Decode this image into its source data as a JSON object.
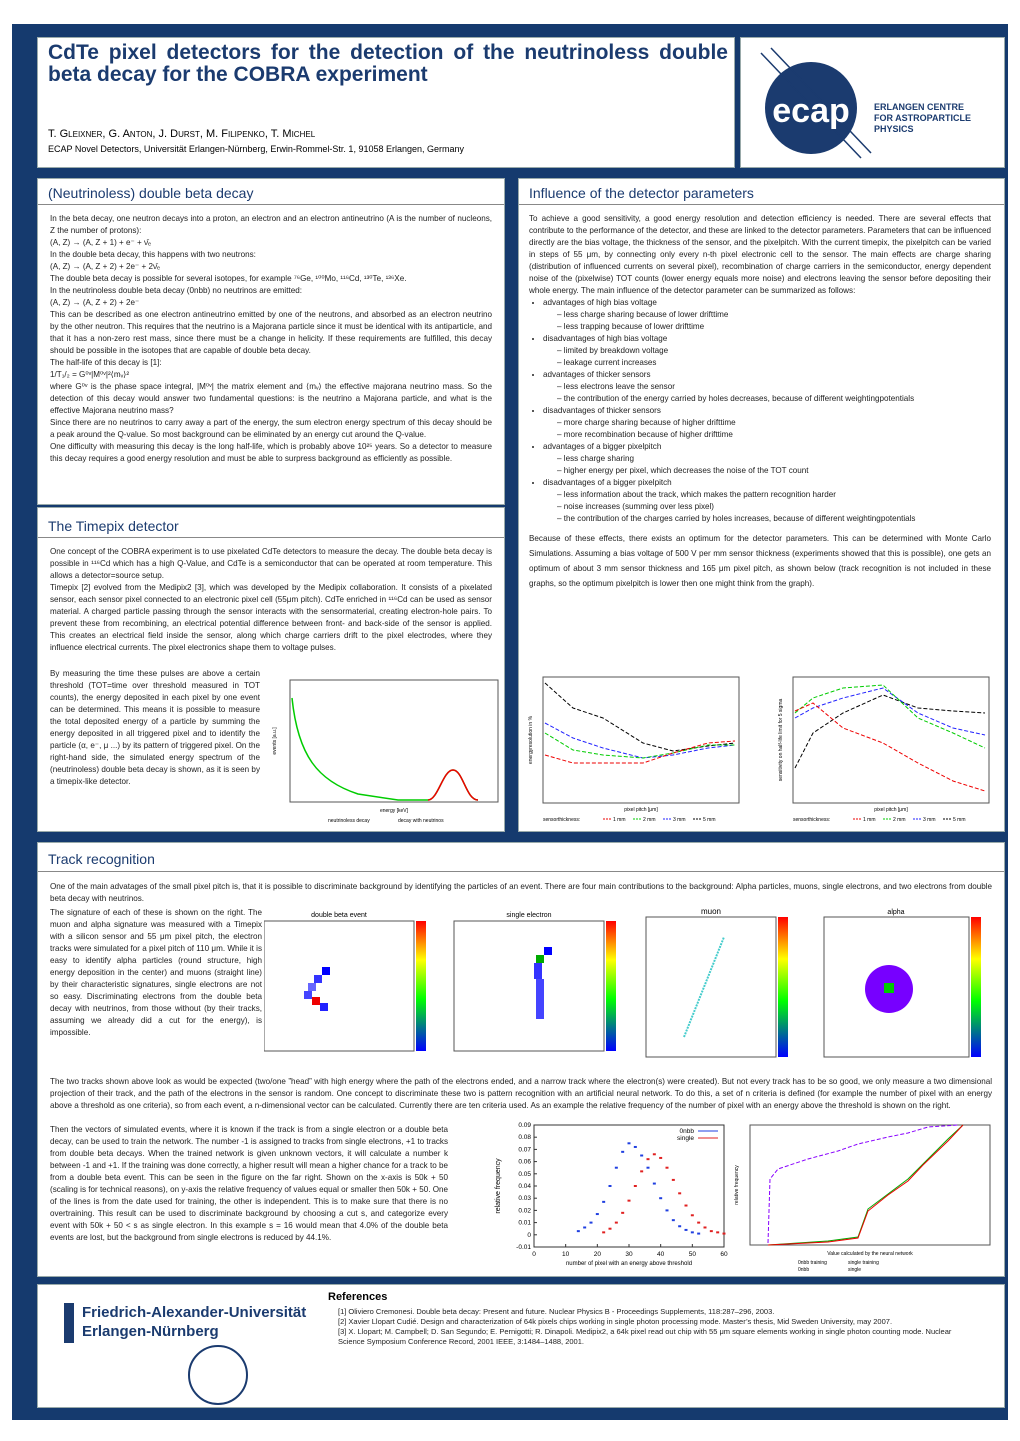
{
  "header": {
    "title": "CdTe pixel detectors for the detection of the neutrinoless double beta decay for the COBRA experiment",
    "authors": "T. Gleixner, G. Anton, J. Durst, M. Filipenko, T. Michel",
    "affiliation": "ECAP Novel Detectors, Universität Erlangen-Nürnberg, Erwin-Rommel-Str. 1, 91058 Erlangen, Germany"
  },
  "logo": {
    "mark": "ecap",
    "lines": [
      "ERLANGEN CENTRE",
      "FOR ASTROPARTICLE",
      "PHYSICS"
    ]
  },
  "double_beta": {
    "title": "(Neutrinoless) double beta decay",
    "paragraphs": [
      "In the beta decay, one neutron decays into a proton, an electron and an electron antineutrino (A is the number of nucleons, Z the number of protons):",
      "(A, Z) → (A, Z + 1) + e⁻ + ν̄ₑ",
      "In the double beta decay, this happens with two neutrons:",
      "(A, Z) → (A, Z + 2) + 2e⁻ + 2ν̄ₑ",
      "The double beta decay is possible for several isotopes, for example ⁷⁶Ge, ¹⁰⁰Mo, ¹¹⁶Cd, ¹³⁰Te, ¹³⁶Xe.",
      "In the neutrinoless double beta decay (0nbb) no neutrinos are emitted:",
      "(A, Z) → (A, Z + 2) + 2e⁻",
      "This can be described as one electron antineutrino emitted by one of the neutrons, and absorbed as an electron neutrino by the other neutron. This requires that the neutrino is a Majorana particle since it must be identical with its antiparticle, and that it has a non-zero rest mass, since there must be a change in helicity. If these requirements are fulfilled, this decay should be possible in the isotopes that are capable of double beta decay.",
      "The half-life of this decay is [1]:",
      "1/T₁/₂ = G⁰ᵛ|M⁰ᵛ|²⟨mᵥ⟩²",
      "where G⁰ᵛ is the phase space integral, |M⁰ᵛ| the matrix element and ⟨mᵥ⟩ the effective majorana neutrino mass. So the detection of this decay would answer two fundamental questions: is the neutrino a Majorana particle, and what is the effective Majorana neutrino mass?",
      "Since there are no neutrinos to carry away a part of the energy, the sum electron energy spectrum of this decay should be a peak around the Q-value. So most background can be eliminated by an energy cut around the Q-value.",
      "One difficulty with measuring this decay is the long half-life, which is probably above 10²⁵ years. So a detector to measure this decay requires a good energy resolution and must be able to surpress background as efficiently as possible."
    ]
  },
  "timepix": {
    "title": "The Timepix detector",
    "paragraphs": [
      "One concept of the COBRA experiment is to use pixelated CdTe detectors to measure the decay. The double beta decay is possible in ¹¹⁶Cd which has a high Q-Value, and CdTe is a semiconductor that can be operated at room temperature. This allows a detector=source setup.",
      "Timepix [2] evolved from the Medipix2 [3], which was developed by the Medipix collaboration. It consists of a pixelated sensor, each sensor pixel connected to an electronic pixel cell (55μm pitch). CdTe enriched in ¹¹⁶Cd can be used as sensor material. A charged particle passing through the sensor interacts with the sensormaterial, creating electron-hole pairs. To prevent these from recombining, an electrical potential difference between front- and back-side of the sensor is applied. This creates an electrical field inside the sensor, along which charge carriers drift to the pixel electrodes, where they influence electrical currents. The pixel electronics shape them to voltage pulses.",
      "By measuring the time these pulses are above a certain threshold (TOT=time over threshold measured in TOT counts), the energy deposited in each pixel by one event can be determined. This means it is possible to measure the total deposited energy of a particle by summing the energy deposited in all triggered pixel and to identify the particle (α, e⁻, μ ...) by its pattern of triggered pixel. On the right-hand side, the simulated energy spectrum of the (neutrinoless) double beta decay is shown, as it is seen by a timepix-like detector."
    ],
    "figure": {
      "x_label": "energy [keV]",
      "y_label": "events [a.u.]",
      "legend": [
        "neutrinoless decay",
        "decay with neutrinos"
      ]
    }
  },
  "parameters": {
    "title": "Influence of the detector parameters",
    "intro": "To achieve a good sensitivity, a good energy resolution and detection efficiency is needed. There are several effects that contribute to the performance of the detector, and these are linked to the detector parameters. Parameters that can be influenced directly are the bias voltage, the thickness of the sensor, and the pixelpitch. With the current timepix, the pixelpitch can be varied in steps of 55 μm, by connecting only every n-th pixel electronic cell to the sensor. The main effects are charge sharing (distribution of influenced currents on several pixel), recombination of charge carriers in the semiconductor, energy dependent noise of the (pixelwise) TOT counts (lower energy equals more noise) and electrons leaving the sensor before depositing their whole energy. The main influence of the detector parameter can be summarized as follows:",
    "bullets": [
      {
        "text": "advantages of high bias voltage",
        "subitems": [
          "less charge sharing because of lower drifttime",
          "less trapping because of lower drifttime"
        ]
      },
      {
        "text": "disadvantages of high bias voltage",
        "subitems": [
          "limited by breakdown voltage",
          "leakage current increases"
        ]
      },
      {
        "text": "advantages of thicker sensors",
        "subitems": [
          "less electrons leave the sensor",
          "the contribution of the energy carried by holes decreases, because of different weightingpotentials"
        ]
      },
      {
        "text": "disadvantages of thicker sensors",
        "subitems": [
          "more charge sharing because of higher drifttime",
          "more recombination because of higher drifttime"
        ]
      },
      {
        "text": "advantages of a bigger pixelpitch",
        "subitems": [
          "less charge sharing",
          "higher energy per pixel, which decreases the noise of the TOT count"
        ]
      },
      {
        "text": "disadvantages of a bigger pixelpitch",
        "subitems": [
          "less information about the track, which makes the pattern recognition harder",
          "noise increases (summing over less pixel)",
          "the contribution of the charges carried by holes increases, because of different weightingpotentials"
        ]
      }
    ],
    "closing": "Because of these effects, there exists an optimum for the detector parameters. This can be determined with Monte Carlo Simulations. Assuming a bias voltage of 500 V per mm sensor thickness (experiments showed that this is possible), one gets an optimum of about 3 mm sensor thickness and 165 μm pixel pitch, as shown below (track recognition is not included in these graphs, so the optimum pixelpitch is lower then one might think from the graph).",
    "figures": [
      {
        "x_label": "pixel pitch [μm]",
        "y_label": "energyresolution in %",
        "legend": [
          "sensorthickness:",
          "1 mm",
          "2 mm",
          "3 mm",
          "5 mm"
        ]
      },
      {
        "x_label": "pixel pitch [μm]",
        "y_label": "sensitivity on half-life limit for 5 sigma",
        "legend": [
          "sensorthickness:",
          "1 mm",
          "2 mm",
          "3 mm",
          "5 mm"
        ]
      }
    ]
  },
  "track": {
    "title": "Track recognition",
    "paragraphs": [
      "One of the main advatages of the small pixel pitch is, that it is possible to discriminate background by identifying the particles of an event. There are four main contributions to the background: Alpha particles, muons, single electrons, and two electrons from double beta decay with neutrinos.",
      "The signature of each of these is shown on the right. The muon and alpha signature was measured with a Timepix with a silicon sensor and 55 μm pixel pitch, the electron tracks were simulated for a pixel pitch of 110 μm. While it is easy to identify alpha particles (round structure, high energy deposition in the center) and muons (straight line) by their characteristic signatures, single electrons are not so easy. Discriminating electrons from the double beta decay with neutrinos, from those without (by their tracks, assuming we already did a cut for the energy), is impossible.",
      "The two tracks shown above look as would be expected (two/one ”head” with high energy where the path of the electrons ended, and a narrow track where the electron(s) were created). But not every track has to be so good, we only measure a two dimensional projection of their track, and the path of the electrons in the sensor is random. One concept to discriminate these two is pattern recognition with an artificial neural network. To do this, a set of n criteria is defined (for example the number of pixel with an energy above a threshold as one criteria), so from each event, a n-dimensional vector can be calculated. Currently there are ten criteria used. As an example the relative frequency of the number of pixel with an energy above the threshold is shown on the right.",
      "Then the vectors of simulated events, where it is known if the track is from a single electron or a double beta decay, can be used to train the network. The number -1 is assigned to tracks from single electrons, +1 to tracks from double beta decays. When the trained network is given unknown vectors, it will calculate a number k between -1 and +1. If the training was done correctly, a higher result will mean a higher chance for a track to be from a double beta event. This can be seen in the figure on the far right. Shown on the x-axis is 50k + 50 (scaling is for technical reasons), on y-axis the relative frequency of values equal or smaller then 50k + 50. One of the lines is from the date used for training, the other is independent. This is to make sure that there is no overtraining. This result can be used to discriminate background by choosing a cut s, and categorize every event with 50k + 50 < s as single electron. In this example s = 16 would mean that 4.0% of the double beta events are lost, but the background from single electrons is reduced by 44.1%."
    ],
    "images": [
      "double beta event",
      "single electron",
      "muon",
      "alpha"
    ],
    "network_figure": {
      "x_label": "Value calculated by the neural network",
      "y_label": "relative frequency",
      "legend": [
        "0nbb training",
        "single training",
        "0nbb",
        "single"
      ]
    }
  },
  "chart_data": {
    "type": "errorline",
    "y_label": "relative frequency",
    "x_label": "number of pixel with an energy above threshold",
    "xlim": [
      0,
      60
    ],
    "xticks": [
      0,
      10,
      20,
      30,
      40,
      50,
      60
    ],
    "ylim": [
      -0.01,
      0.09
    ],
    "yticks": [
      -0.01,
      0,
      0.01,
      0.02,
      0.03,
      0.04,
      0.05,
      0.06,
      0.07,
      0.08,
      0.09
    ],
    "series": [
      {
        "name": "0nbb",
        "color": "#1f3fe0",
        "x": [
          14,
          16,
          18,
          20,
          22,
          24,
          26,
          28,
          30,
          32,
          34,
          36,
          38,
          40,
          42,
          44,
          46,
          48,
          50,
          52
        ],
        "values": [
          0.003,
          0.006,
          0.01,
          0.017,
          0.027,
          0.04,
          0.055,
          0.068,
          0.075,
          0.072,
          0.065,
          0.055,
          0.042,
          0.03,
          0.02,
          0.012,
          0.007,
          0.004,
          0.002,
          0.001
        ]
      },
      {
        "name": "single",
        "color": "#e02020",
        "x": [
          22,
          24,
          26,
          28,
          30,
          32,
          34,
          36,
          38,
          40,
          42,
          44,
          46,
          48,
          50,
          52,
          54,
          56,
          58,
          60
        ],
        "values": [
          0.002,
          0.005,
          0.01,
          0.018,
          0.028,
          0.04,
          0.052,
          0.062,
          0.066,
          0.063,
          0.055,
          0.045,
          0.034,
          0.024,
          0.016,
          0.01,
          0.006,
          0.003,
          0.002,
          0.001
        ]
      }
    ],
    "legend": "top-right"
  },
  "references": {
    "title": "References",
    "items": [
      "[1] Oliviero Cremonesi. Double beta decay: Present and future. Nuclear Physics B - Proceedings Supplements, 118:287–296, 2003.",
      "[2] Xavier Llopart Cudié. Design and characterization of 64k pixels chips working in single photon processing mode. Master’s thesis, Mid Sweden University, may 2007.",
      "[3] X. Llopart; M. Campbell; D. San Segundo; E. Pernigotti; R. Dinapoli. Medipix2, a 64k pixel read out chip with 55 μm square elements working in single photon counting mode. Nuclear Science Symposium Conference Record, 2001 IEEE, 3:1484–1488, 2001."
    ]
  },
  "university": [
    "Friedrich-Alexander-Universität",
    "Erlangen-Nürnberg"
  ]
}
